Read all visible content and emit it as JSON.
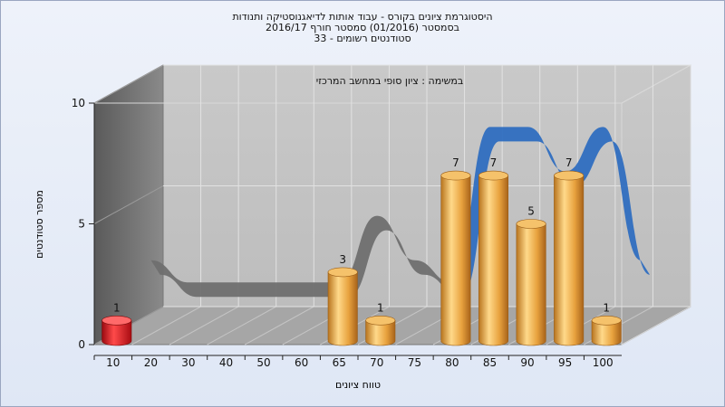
{
  "chart_data": {
    "type": "bar",
    "title_lines": [
      "היסטוגרמת ציונים בקורס - עבוד אותות לדיאגנוסטיקה ותנודות",
      "בסמסטר  (01/2016)  סמסטר חורף  2016/17",
      "סטודנטים רשומים - 33"
    ],
    "annotation": "במשימה : ציון סופי במחשב המרכזי",
    "xlabel": "טווח ציונים",
    "ylabel": "מספר סטודנטים",
    "categories": [
      "10",
      "20",
      "30",
      "40",
      "50",
      "60",
      "65",
      "70",
      "75",
      "80",
      "85",
      "90",
      "95",
      "100"
    ],
    "values": [
      1,
      0,
      0,
      0,
      0,
      0,
      3,
      1,
      0,
      7,
      7,
      5,
      7,
      1
    ],
    "bar_colors": {
      "10": "#e8121a",
      "default": "#e8a23e"
    },
    "ylim": [
      0,
      10
    ],
    "yticks": [
      0,
      5,
      10
    ],
    "distribution_curve": true,
    "curve_colors": {
      "left": "#6f6f6f",
      "right": "#2f6ec0"
    },
    "grid": true
  }
}
